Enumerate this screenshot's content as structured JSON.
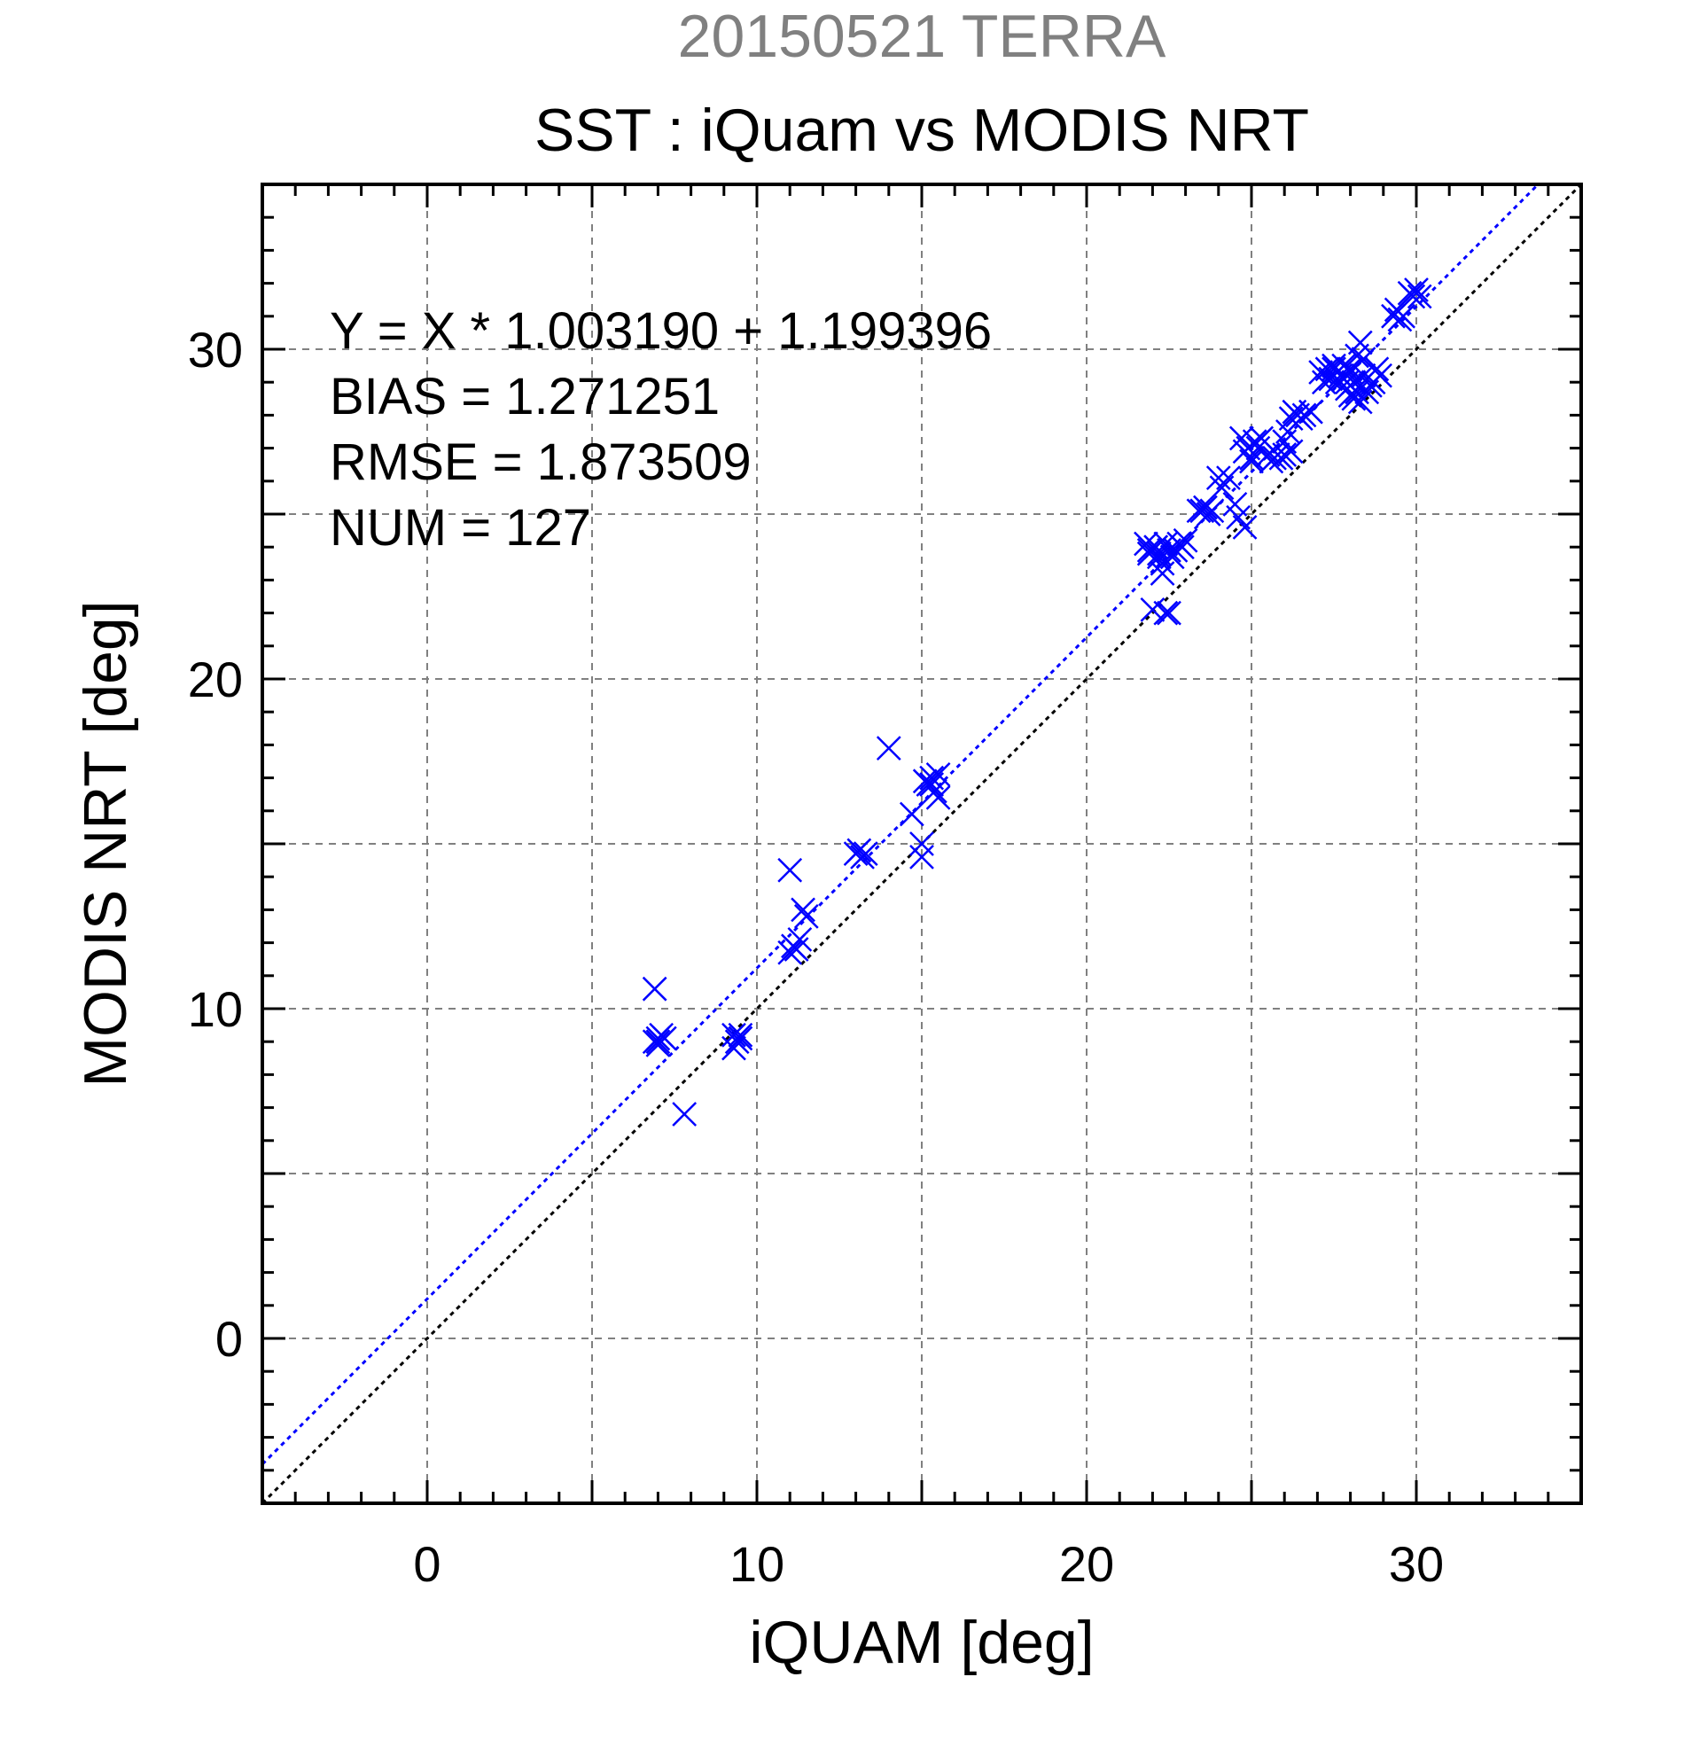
{
  "chart_data": {
    "type": "scatter",
    "title": "20150521 TERRA",
    "subtitle": "SST : iQuam vs MODIS NRT",
    "xlabel": "iQUAM [deg]",
    "ylabel": "MODIS NRT [deg]",
    "xlim": [
      -5,
      35
    ],
    "ylim": [
      -5,
      35
    ],
    "xticks": [
      0,
      10,
      20,
      30
    ],
    "yticks": [
      0,
      10,
      20,
      30
    ],
    "grid": true,
    "colors": {
      "points": "#0000ff",
      "fit_line": "#0000ff",
      "identity_line": "#000000",
      "grid": "#808080",
      "title": "#808080"
    },
    "annotations": [
      "Y = X * 1.003190 + 1.199396",
      "BIAS = 1.271251",
      "RMSE = 1.873509",
      "NUM = 127"
    ],
    "fit": {
      "slope": 1.00319,
      "intercept": 1.199396
    },
    "identity": {
      "slope": 1,
      "intercept": 0
    },
    "series": [
      {
        "marker": "x",
        "x": [
          6.9,
          7.0,
          7.0,
          7.1,
          7.2,
          7.0,
          7.8,
          9.3,
          9.4,
          9.5,
          9.3,
          11.0,
          11.1,
          11.2,
          11.4,
          11.3,
          11.0,
          13.1,
          13.3,
          13.2,
          14.0,
          14.7,
          15.0,
          15.0,
          15.1,
          15.3,
          15.2,
          15.5,
          15.5,
          15.3,
          21.8,
          21.9,
          22.0,
          22.1,
          22.2,
          22.3,
          22.4,
          22.5,
          22.6,
          22.8,
          22.9,
          22.3,
          22.4,
          22.5,
          22.2,
          21.9,
          23.4,
          23.5,
          23.6,
          23.7,
          24.0,
          24.3,
          24.5,
          24.6,
          24.7,
          24.8,
          25.0,
          25.0,
          25.1,
          24.8,
          25.2,
          25.6,
          25.7,
          25.8,
          25.9,
          26.0,
          26.1,
          26.2,
          26.3,
          26.5,
          26.6,
          26.8,
          27.1,
          27.3,
          27.4,
          27.5,
          27.6,
          27.6,
          27.7,
          27.8,
          27.9,
          28.0,
          28.0,
          28.1,
          28.1,
          28.2,
          28.3,
          28.3,
          28.4,
          28.5,
          28.7,
          28.9,
          28.2,
          28.0,
          28.1,
          27.8,
          27.9,
          28.3,
          28.4,
          29.3,
          29.5,
          29.6,
          29.8,
          29.9,
          30.0,
          30.1,
          25.5,
          26.0,
          26.2,
          23.8,
          27.5,
          28.6,
          22.7,
          26.4,
          25.3,
          24.9,
          23.0,
          22.1,
          27.2,
          28.8,
          29.4,
          15.4,
          13.0,
          11.5,
          9.5,
          6.9,
          24.1
        ],
        "y": [
          10.6,
          9.1,
          9.0,
          9.2,
          9.1,
          8.9,
          6.8,
          9.2,
          9.0,
          9.1,
          8.8,
          14.2,
          11.9,
          11.8,
          13.0,
          12.1,
          11.7,
          14.8,
          14.7,
          14.6,
          17.9,
          15.9,
          14.6,
          15.0,
          16.9,
          17.0,
          16.8,
          17.1,
          16.4,
          16.8,
          24.1,
          23.9,
          22.1,
          24.0,
          23.7,
          23.5,
          24.1,
          23.9,
          23.7,
          24.1,
          24.0,
          23.2,
          22.0,
          22.0,
          23.8,
          23.8,
          25.1,
          25.1,
          25.2,
          25.0,
          26.1,
          26.1,
          25.3,
          24.9,
          27.3,
          24.6,
          26.6,
          26.7,
          27.2,
          26.9,
          27.0,
          26.6,
          26.7,
          26.8,
          26.7,
          26.8,
          27.5,
          27.9,
          28.1,
          27.9,
          28.0,
          28.1,
          29.3,
          29.4,
          29.1,
          29.4,
          29.0,
          29.3,
          29.2,
          29.1,
          29.0,
          29.4,
          28.6,
          29.0,
          28.5,
          28.7,
          28.9,
          28.4,
          29.2,
          28.7,
          29.0,
          29.2,
          29.8,
          29.3,
          29.0,
          29.5,
          28.8,
          30.2,
          29.7,
          31.0,
          30.9,
          31.0,
          31.7,
          31.6,
          31.8,
          31.6,
          26.8,
          27.2,
          26.9,
          25.1,
          29.5,
          28.9,
          23.9,
          28.0,
          27.3,
          27.0,
          24.2,
          24.0,
          29.0,
          29.4,
          31.2,
          16.6,
          14.7,
          12.8,
          9.2,
          9.0,
          25.8
        ]
      }
    ]
  }
}
